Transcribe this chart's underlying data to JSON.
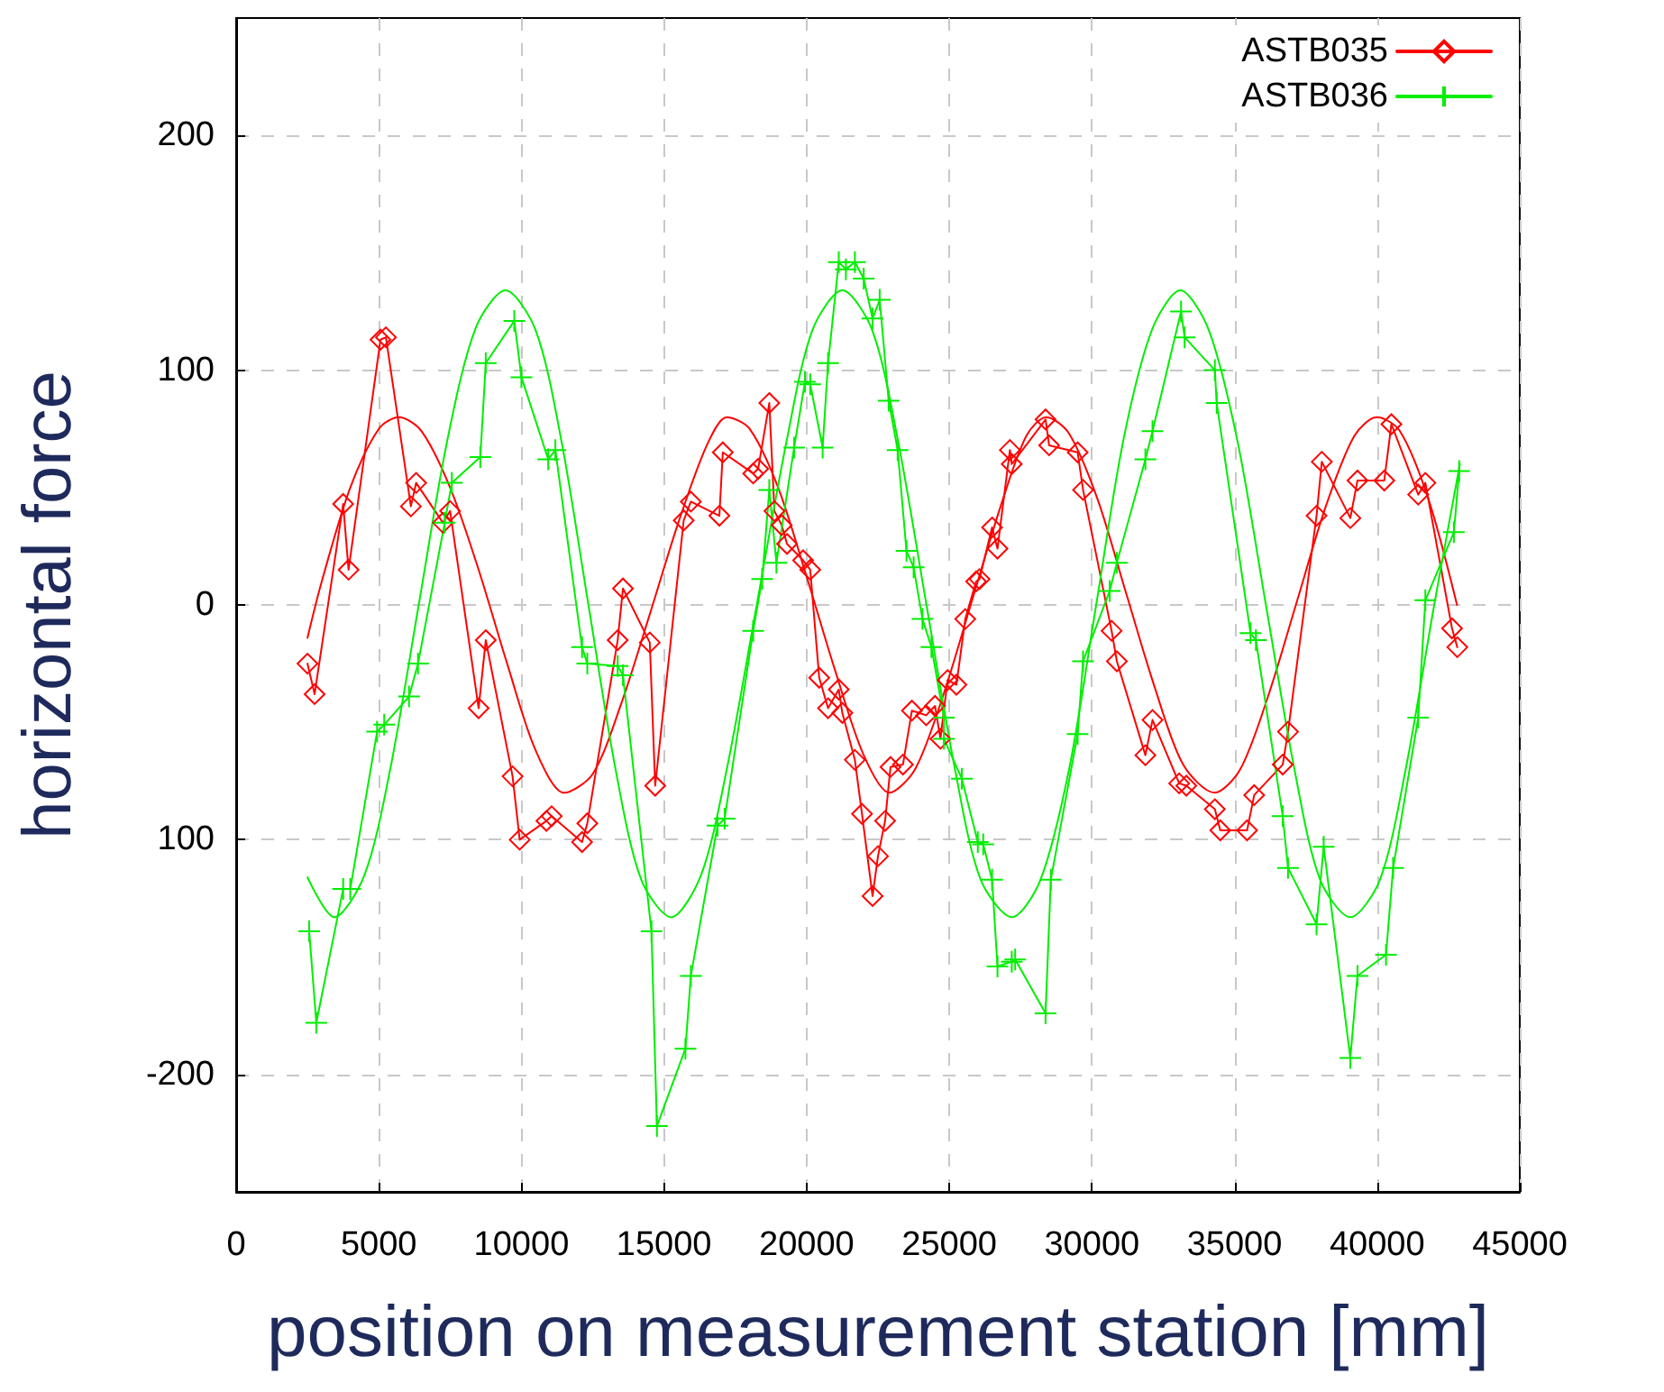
{
  "chart_data": {
    "type": "line",
    "xlabel": "position on measurement station [mm]",
    "ylabel": "horizontal force",
    "xlim": [
      0,
      45000
    ],
    "xticks": [
      0,
      5000,
      10000,
      15000,
      20000,
      25000,
      30000,
      35000,
      40000,
      45000
    ],
    "ylim": [
      -250,
      250
    ],
    "yticks": [
      -200,
      {
        "value": -100,
        "label": "100"
      },
      0,
      100,
      200
    ],
    "grid": true,
    "legend": "top right",
    "line_style": "solid",
    "series": [
      {
        "name": "ASTB035",
        "color": "#ff0000",
        "marker": "diamond",
        "x": [
          2500,
          2750,
          3750,
          3940,
          5060,
          5250,
          6125,
          6310,
          7250,
          7500,
          8500,
          8750,
          9690,
          9940,
          10875,
          11060,
          12125,
          12310,
          13375,
          13560,
          14500,
          14690,
          15690,
          15940,
          16940,
          17060,
          18125,
          18300,
          18690,
          18870,
          19125,
          19310,
          19875,
          20125,
          20440,
          20750,
          21125,
          21250,
          21690,
          21940,
          22310,
          22500,
          22750,
          22940,
          23375,
          23690,
          24190,
          24500,
          24690,
          24940,
          25250,
          25560,
          25940,
          26060,
          26500,
          26690,
          27125,
          27190,
          28375,
          28500,
          29500,
          29690,
          30690,
          30875,
          31875,
          32125,
          33060,
          33310,
          34310,
          34500,
          35440,
          35690,
          36690,
          36875,
          37875,
          38060,
          39060,
          39310,
          40250,
          40500,
          41440,
          41690,
          42625,
          42810
        ],
        "values": [
          -25,
          -38,
          43,
          15,
          113,
          114,
          42,
          52,
          35,
          40,
          -44,
          -15,
          -73,
          -100,
          -92,
          -90,
          -101,
          -93,
          -15,
          7,
          -16,
          -77,
          36,
          44,
          38,
          65,
          56,
          58,
          86,
          40,
          34,
          26,
          19,
          15,
          -31,
          -44,
          -36,
          -46,
          -66,
          -89,
          -124,
          -107,
          -92,
          -69,
          -68,
          -45,
          -47,
          -43,
          -57,
          -32,
          -34,
          -6,
          10,
          11,
          33,
          24,
          66,
          60,
          79,
          68,
          65,
          49,
          -11,
          -24,
          -64,
          -49,
          -76,
          -77,
          -87,
          -96,
          -96,
          -81,
          -68,
          -54,
          38,
          61,
          37,
          53,
          53,
          77,
          47,
          52,
          -10,
          -18
        ]
      },
      {
        "color": "#ff0000",
        "marker": "none",
        "x": [
          2500,
          3000,
          4000,
          5000,
          5700,
          6500,
          7500,
          8500,
          9500,
          10500,
          11500,
          12500,
          13500,
          14500,
          15500,
          16500,
          17200,
          18000,
          19000,
          20000,
          21000,
          22000,
          22900,
          23800,
          24800,
          25800,
          26800,
          27700,
          28400,
          29200,
          30200,
          31200,
          32200,
          33200,
          34300,
          35200,
          36200,
          37200,
          38200,
          39200,
          40000,
          40800,
          41800,
          42800
        ],
        "values": [
          -14,
          10,
          50,
          75,
          80,
          74,
          50,
          15,
          -25,
          -62,
          -80,
          -72,
          -42,
          -4,
          35,
          68,
          80,
          75,
          50,
          12,
          -28,
          -64,
          -80,
          -70,
          -38,
          2,
          42,
          72,
          80,
          73,
          45,
          5,
          -35,
          -68,
          -80,
          -70,
          -38,
          2,
          42,
          72,
          80,
          74,
          45,
          0
        ]
      },
      {
        "name": "ASTB036",
        "color": "#00ee00",
        "marker": "cross",
        "x": [
          2560,
          2810,
          3750,
          4000,
          4940,
          5190,
          6060,
          6375,
          7310,
          7560,
          8560,
          8750,
          9750,
          10000,
          10940,
          11190,
          12125,
          12310,
          13375,
          13560,
          14560,
          14750,
          15750,
          15940,
          16875,
          17125,
          18125,
          18440,
          18690,
          18940,
          19560,
          19940,
          20125,
          20560,
          20750,
          21125,
          21375,
          21690,
          22000,
          22310,
          22560,
          22875,
          23190,
          23500,
          23750,
          24060,
          24375,
          24810,
          24810,
          25440,
          26000,
          26190,
          26500,
          26690,
          27190,
          27310,
          28375,
          28560,
          29500,
          29690,
          30625,
          30875,
          31875,
          32125,
          33125,
          33250,
          34310,
          34375,
          35560,
          35750,
          36690,
          36875,
          37875,
          38125,
          39060,
          39310,
          40310,
          40560,
          41440,
          41690,
          42690,
          42875
        ],
        "values": [
          -139,
          -178,
          -121,
          -121,
          -54,
          -51,
          -39,
          -25,
          35,
          52,
          63,
          103,
          121,
          97,
          62,
          66,
          -18,
          -25,
          -26,
          -30,
          -139,
          -222,
          -189,
          -158,
          -94,
          -91,
          -11,
          11,
          49,
          18,
          67,
          95,
          94,
          67,
          103,
          146,
          143,
          146,
          139,
          122,
          130,
          87,
          66,
          23,
          16,
          -6,
          -18,
          -48,
          -57,
          -74,
          -101,
          -102,
          -117,
          -154,
          -152,
          -151,
          -174,
          -117,
          -55,
          -24,
          6,
          18,
          62,
          74,
          125,
          114,
          100,
          86,
          -12,
          -15,
          -90,
          -112,
          -136,
          -103,
          -193,
          -158,
          -149,
          -112,
          -48,
          2,
          31,
          57
        ]
      },
      {
        "color": "#00ee00",
        "marker": "none",
        "x": [
          2500,
          3440,
          4500,
          5400,
          6400,
          7400,
          8400,
          9440,
          10500,
          11400,
          12350,
          13300,
          14200,
          15250,
          16300,
          17200,
          18250,
          19300,
          20200,
          21250,
          22300,
          23200,
          24200,
          25200,
          26100,
          27200,
          28200,
          29200,
          30150,
          31100,
          32100,
          33100,
          34100,
          35100,
          36100,
          37100,
          38000,
          39060,
          40100,
          41000,
          42000,
          42900
        ],
        "values": [
          -116,
          -133,
          -115,
          -70,
          0,
          70,
          118,
          134,
          117,
          70,
          0,
          -70,
          -117,
          -133,
          -115,
          -70,
          0,
          70,
          117,
          134,
          117,
          70,
          0,
          -70,
          -117,
          -133,
          -117,
          -70,
          0,
          70,
          117,
          134,
          117,
          70,
          0,
          -70,
          -117,
          -133,
          -117,
          -70,
          0,
          60
        ]
      }
    ]
  }
}
